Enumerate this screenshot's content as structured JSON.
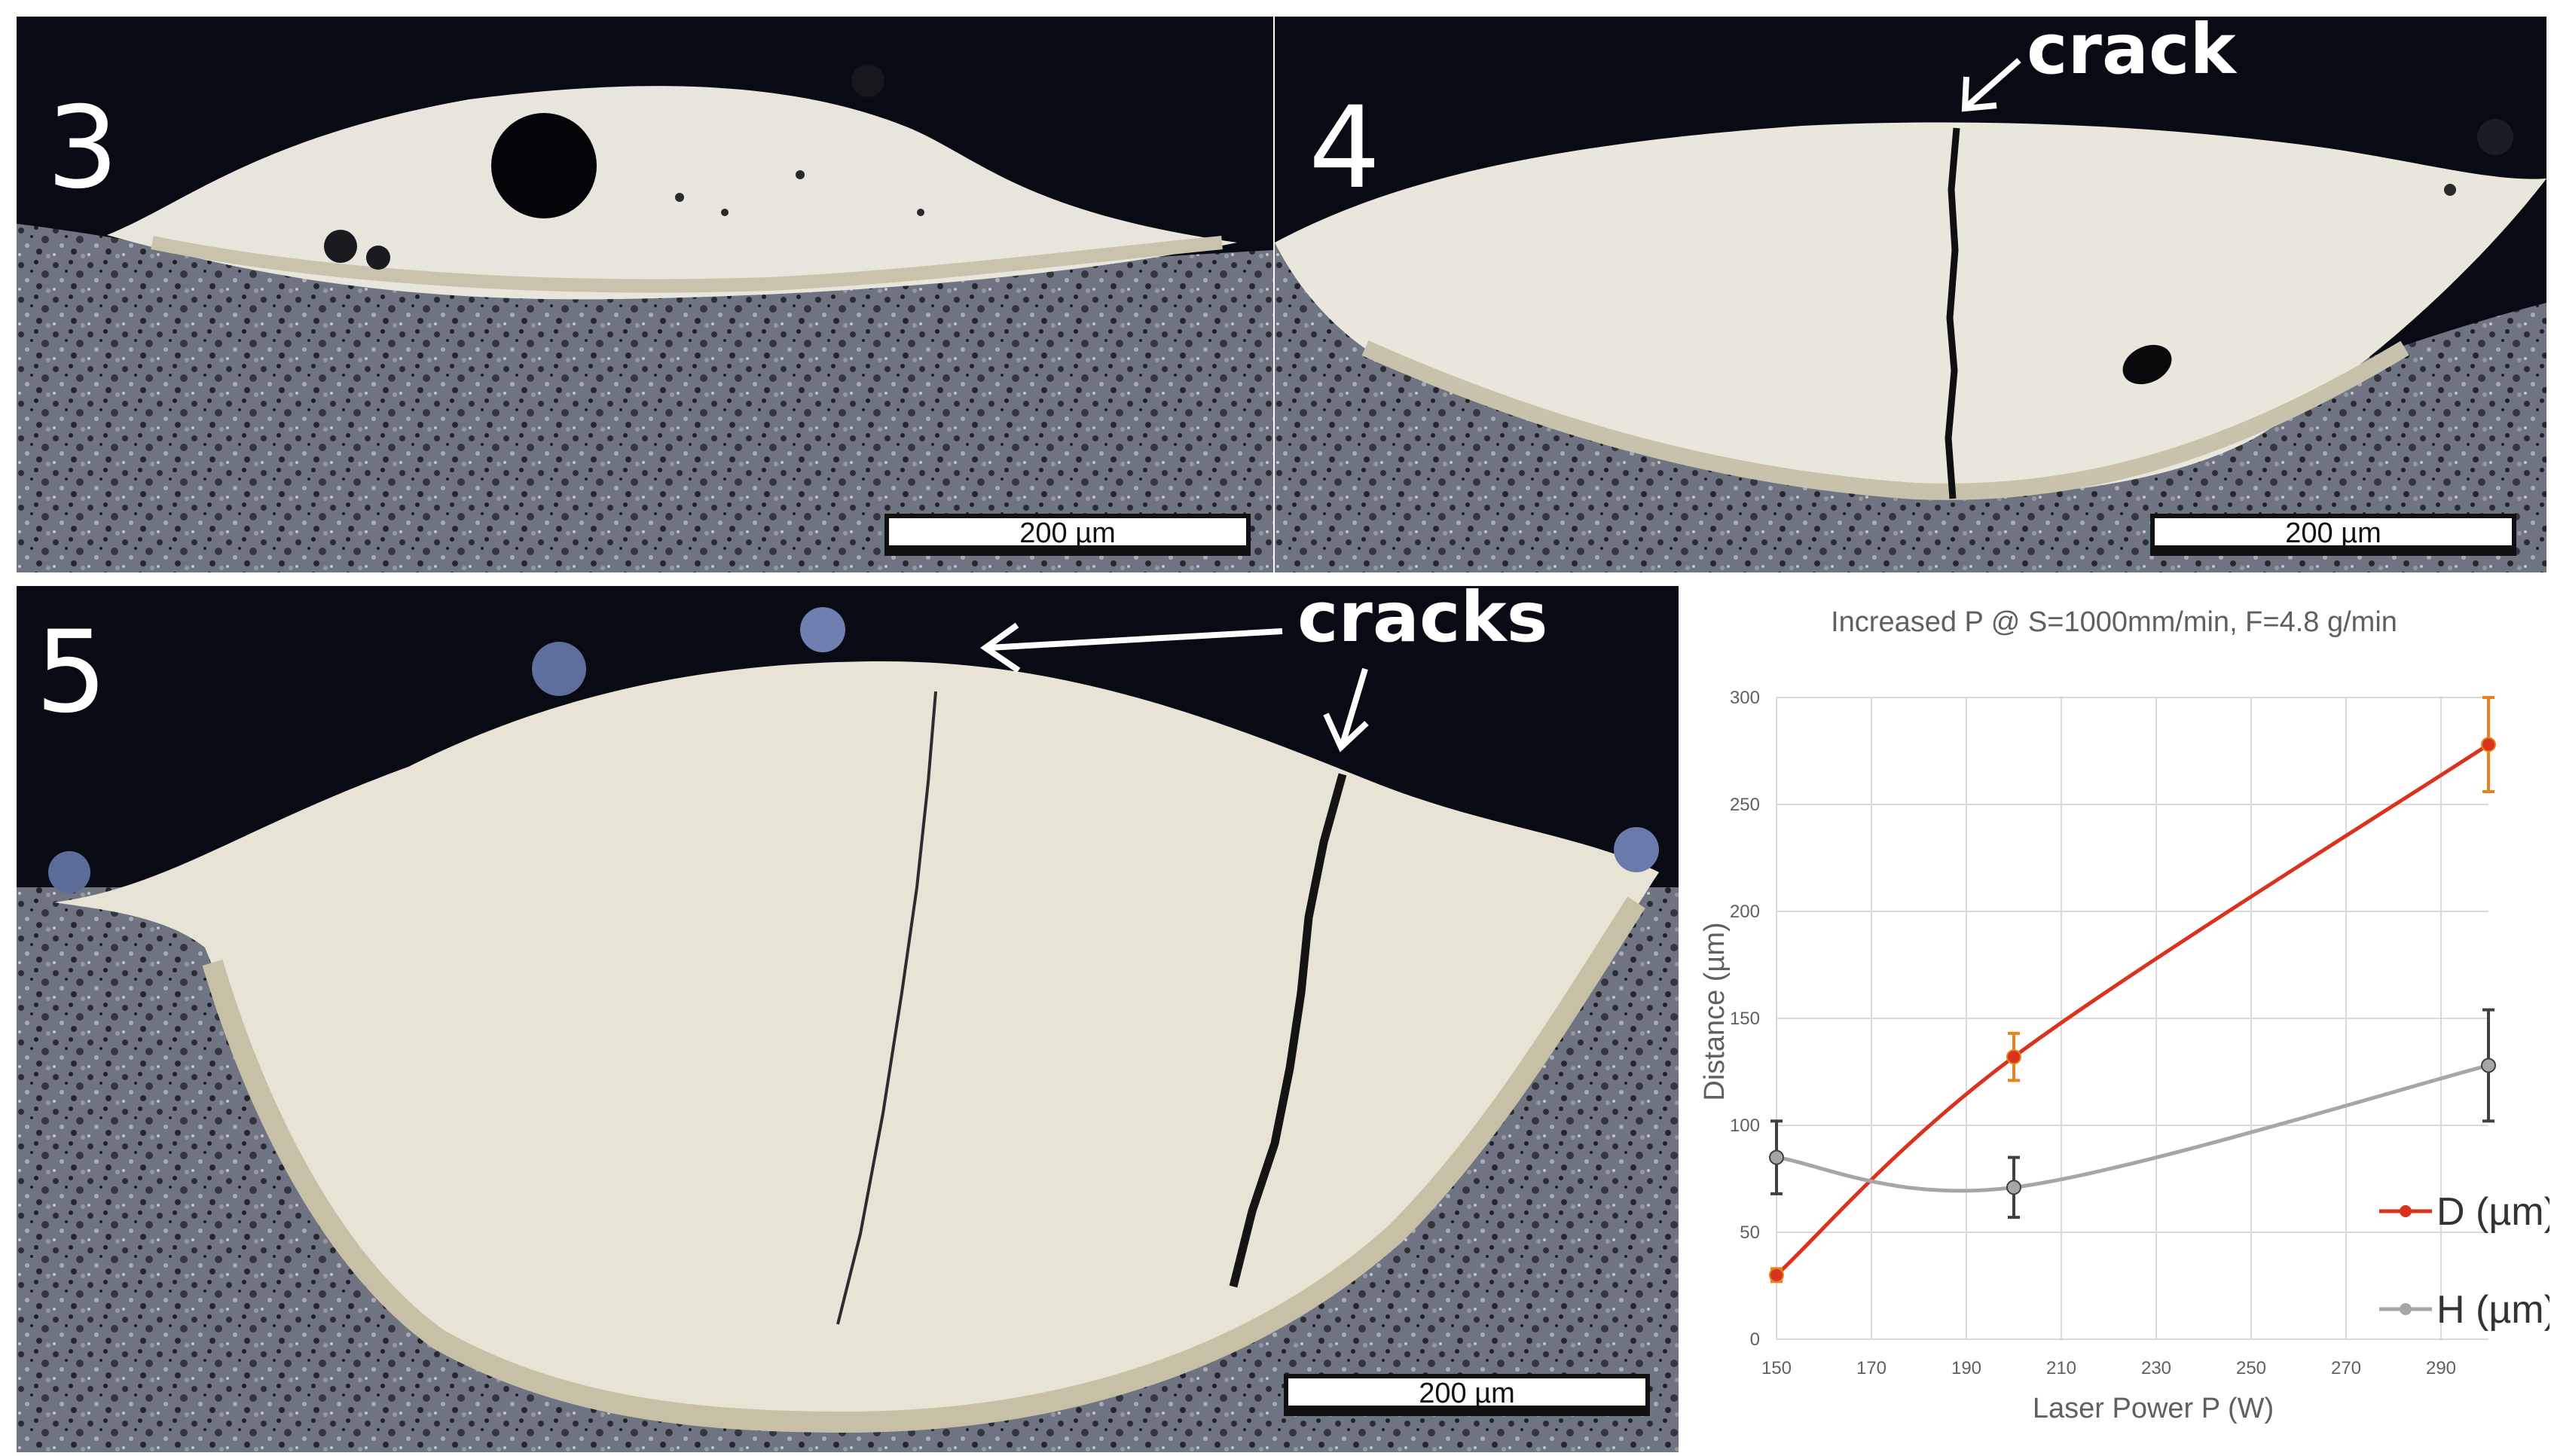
{
  "panels": [
    {
      "label": "3",
      "scalebar": "200 µm"
    },
    {
      "label": "4",
      "scalebar": "200 µm",
      "annotation": "crack"
    },
    {
      "label": "5",
      "scalebar": "200 µm",
      "annotation": "cracks"
    }
  ],
  "chart_data": {
    "type": "line",
    "title": "Increased P @ S=1000mm/min, F=4.8 g/min",
    "xlabel": "Laser Power P (W)",
    "ylabel": "Distance (µm)",
    "xlim": [
      150,
      300
    ],
    "ylim": [
      0,
      300
    ],
    "xticks": [
      150,
      170,
      190,
      210,
      230,
      250,
      270,
      290
    ],
    "yticks": [
      0,
      50,
      100,
      150,
      200,
      250,
      300
    ],
    "grid": true,
    "legend_position": "right",
    "series": [
      {
        "name": "D (µm)",
        "color": "#d9321f",
        "errorbar_color": "#e8821e",
        "x": [
          150,
          200,
          300
        ],
        "y": [
          30,
          132,
          278
        ],
        "err": [
          3,
          11,
          22
        ]
      },
      {
        "name": "H (µm)",
        "color": "#a6a6a6",
        "errorbar_color": "#404040",
        "x": [
          150,
          200,
          300
        ],
        "y": [
          85,
          71,
          128
        ],
        "err": [
          17,
          14,
          26
        ]
      }
    ]
  }
}
